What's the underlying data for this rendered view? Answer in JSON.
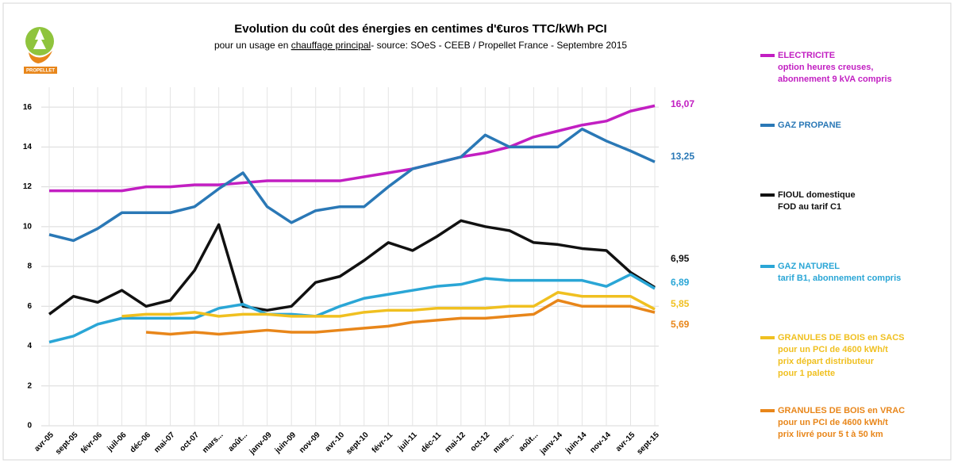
{
  "chart_data": {
    "type": "line",
    "title": "Evolution du coût des énergies en centimes d'€uros TTC/kWh PCI",
    "subtitle": [
      "pour un usage en ",
      "chauffage principal",
      "- source: SOeS - CEEB / Propellet France -  Septembre 2015"
    ],
    "logo_text": "PROPELLET",
    "categories": [
      "avr-05",
      "sept-05",
      "févr-06",
      "juil-06",
      "déc-06",
      "mai-07",
      "oct-07",
      "mars...",
      "août...",
      "janv-09",
      "juin-09",
      "nov-09",
      "avr-10",
      "sept-10",
      "févr-11",
      "juil-11",
      "déc-11",
      "mai-12",
      "oct-12",
      "mars...",
      "août...",
      "janv-14",
      "juin-14",
      "nov-14",
      "avr-15",
      "sept-15"
    ],
    "ylim": [
      0,
      17
    ],
    "yticks": [
      0,
      2,
      4,
      6,
      8,
      10,
      12,
      14,
      16
    ],
    "series": [
      {
        "name": "ELECTRICITE",
        "note": [
          "option heures creuses,",
          "abonnement 9 kVA compris"
        ],
        "color": "#c21fc2",
        "end_label": "16,07",
        "values": [
          11.8,
          11.8,
          11.8,
          11.8,
          12.0,
          12.0,
          12.1,
          12.1,
          12.2,
          12.3,
          12.3,
          12.3,
          12.3,
          12.5,
          12.7,
          12.9,
          13.2,
          13.5,
          13.7,
          14.0,
          14.5,
          14.8,
          15.1,
          15.3,
          15.8,
          16.07
        ]
      },
      {
        "name": "GAZ PROPANE",
        "note": [],
        "color": "#2a78b6",
        "end_label": "13,25",
        "values": [
          9.6,
          9.3,
          9.9,
          10.7,
          10.7,
          10.7,
          11.0,
          11.9,
          12.7,
          11.0,
          10.2,
          10.8,
          11.0,
          11.0,
          12.0,
          12.9,
          13.2,
          13.5,
          14.6,
          14.0,
          14.0,
          14.0,
          14.9,
          14.3,
          13.8,
          13.25
        ]
      },
      {
        "name": "FIOUL domestique",
        "note": [
          "FOD au tarif C1"
        ],
        "color": "#111111",
        "end_label": "6,95",
        "values": [
          5.6,
          6.5,
          6.2,
          6.8,
          6.0,
          6.3,
          7.8,
          10.1,
          6.0,
          5.8,
          6.0,
          7.2,
          7.5,
          8.3,
          9.2,
          8.8,
          9.5,
          10.3,
          10.0,
          9.8,
          9.2,
          9.1,
          8.9,
          8.8,
          7.7,
          6.95
        ]
      },
      {
        "name": "GAZ NATUREL",
        "note": [
          "tarif B1, abonnement compris"
        ],
        "color": "#2aa6d6",
        "end_label": "6,89",
        "values": [
          4.2,
          4.5,
          5.1,
          5.4,
          5.4,
          5.4,
          5.4,
          5.9,
          6.1,
          5.6,
          5.6,
          5.5,
          6.0,
          6.4,
          6.6,
          6.8,
          7.0,
          7.1,
          7.4,
          7.3,
          7.3,
          7.3,
          7.3,
          7.0,
          7.6,
          6.89
        ]
      },
      {
        "name": "GRANULES DE BOIS en SACS",
        "note": [
          "pour un PCI de 4600 kWh/t",
          "prix départ distributeur",
          "pour 1 palette"
        ],
        "color": "#f0c020",
        "end_label": "5,85",
        "values": [
          null,
          null,
          null,
          5.5,
          5.6,
          5.6,
          5.7,
          5.5,
          5.6,
          5.6,
          5.5,
          5.5,
          5.5,
          5.7,
          5.8,
          5.8,
          5.9,
          5.9,
          5.9,
          6.0,
          6.0,
          6.7,
          6.5,
          6.5,
          6.5,
          5.85
        ]
      },
      {
        "name": "GRANULES DE BOIS en VRAC",
        "note": [
          "pour un PCI de 4600 kWh/t",
          "prix livré pour 5 t à 50 km"
        ],
        "color": "#e8861a",
        "end_label": "5,69",
        "values": [
          null,
          null,
          null,
          null,
          4.7,
          4.6,
          4.7,
          4.6,
          4.7,
          4.8,
          4.7,
          4.7,
          4.8,
          4.9,
          5.0,
          5.2,
          5.3,
          5.4,
          5.4,
          5.5,
          5.6,
          6.3,
          6.0,
          6.0,
          6.0,
          5.69
        ]
      }
    ]
  }
}
